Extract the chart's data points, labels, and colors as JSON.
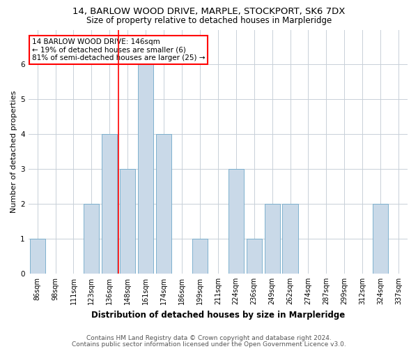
{
  "title": "14, BARLOW WOOD DRIVE, MARPLE, STOCKPORT, SK6 7DX",
  "subtitle": "Size of property relative to detached houses in Marpleridge",
  "xlabel": "Distribution of detached houses by size in Marpleridge",
  "ylabel": "Number of detached properties",
  "categories": [
    "86sqm",
    "98sqm",
    "111sqm",
    "123sqm",
    "136sqm",
    "148sqm",
    "161sqm",
    "174sqm",
    "186sqm",
    "199sqm",
    "211sqm",
    "224sqm",
    "236sqm",
    "249sqm",
    "262sqm",
    "274sqm",
    "287sqm",
    "299sqm",
    "312sqm",
    "324sqm",
    "337sqm"
  ],
  "values": [
    1,
    0,
    0,
    2,
    4,
    3,
    6,
    4,
    0,
    1,
    0,
    3,
    1,
    2,
    2,
    0,
    0,
    0,
    0,
    2,
    0
  ],
  "bar_color": "#c9d9e8",
  "bar_edge_color": "#6fa8c9",
  "vline_x_index": 5,
  "ylim": [
    0,
    7
  ],
  "yticks": [
    0,
    1,
    2,
    3,
    4,
    5,
    6
  ],
  "annotation_title": "14 BARLOW WOOD DRIVE: 146sqm",
  "annotation_line1": "← 19% of detached houses are smaller (6)",
  "annotation_line2": "81% of semi-detached houses are larger (25) →",
  "footer1": "Contains HM Land Registry data © Crown copyright and database right 2024.",
  "footer2": "Contains public sector information licensed under the Open Government Licence v3.0.",
  "background_color": "#ffffff",
  "grid_color": "#c8d0d8",
  "title_fontsize": 9.5,
  "subtitle_fontsize": 8.5,
  "ylabel_fontsize": 8,
  "xlabel_fontsize": 8.5,
  "tick_fontsize": 7,
  "footer_fontsize": 6.5,
  "annotation_fontsize": 7.5
}
